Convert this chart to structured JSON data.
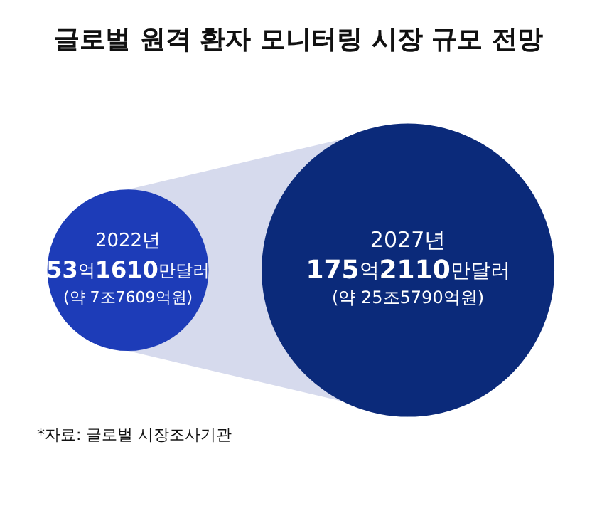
{
  "chart_data": {
    "type": "other",
    "title": "글로벌 원격 환자 모니터링 시장 규모 전망",
    "categories": [
      "2022년",
      "2027년"
    ],
    "values": [
      53.161,
      175.211
    ],
    "colors": [
      "#1d3cb8",
      "#0b2a7a"
    ],
    "value_labels": [
      "53억1610만달러",
      "175억2110만달러"
    ],
    "annotations": [
      {
        "text": "(약 7조7609억원)",
        "x": "2022년"
      },
      {
        "text": "(약 25조5790억원)",
        "x": "2027년"
      },
      "*자료: 글로벌 시장조사기관"
    ]
  }
}
